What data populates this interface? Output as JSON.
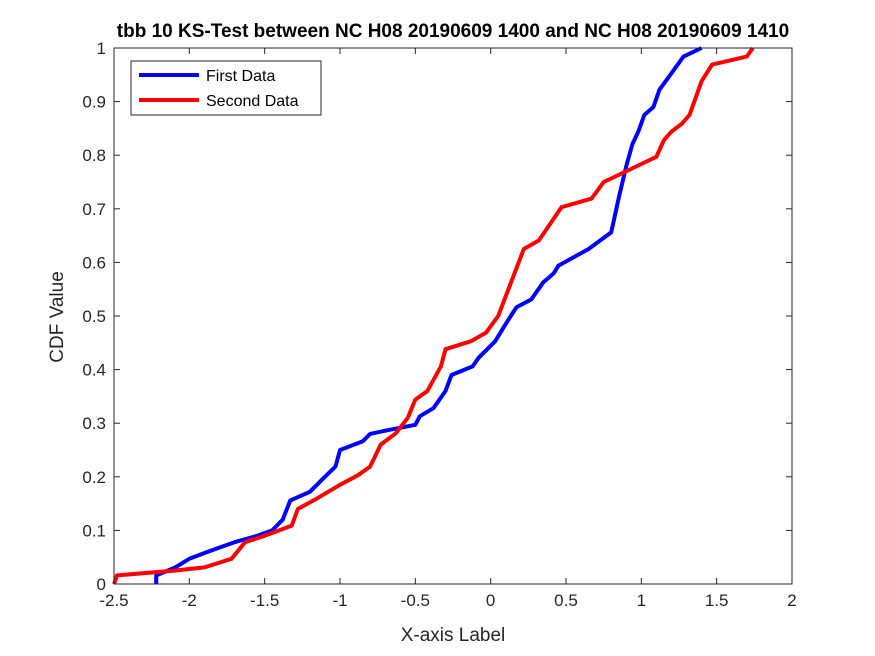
{
  "chart_data": {
    "type": "line",
    "title": "tbb 10 KS-Test between NC H08 20190609 1400 and NC H08 20190609 1410",
    "xlabel": "X-axis Label",
    "ylabel": "CDF Value",
    "xlim": [
      -2.5,
      2
    ],
    "ylim": [
      0,
      1
    ],
    "xticks": [
      -2.5,
      -2,
      -1.5,
      -1,
      -0.5,
      0,
      0.5,
      1,
      1.5,
      2
    ],
    "yticks": [
      0,
      0.1,
      0.2,
      0.3,
      0.4,
      0.5,
      0.6,
      0.7,
      0.8,
      0.9,
      1
    ],
    "xtick_labels": [
      "-2.5",
      "-2",
      "-1.5",
      "-1",
      "-0.5",
      "0",
      "0.5",
      "1",
      "1.5",
      "2"
    ],
    "ytick_labels": [
      "0",
      "0.1",
      "0.2",
      "0.3",
      "0.4",
      "0.5",
      "0.6",
      "0.7",
      "0.8",
      "0.9",
      "1"
    ],
    "grid": false,
    "legend_position": "top-left",
    "series": [
      {
        "name": "First Data",
        "color": "#0000ff",
        "points": [
          [
            -2.22,
            0.0
          ],
          [
            -2.22,
            0.016
          ],
          [
            -2.1,
            0.03
          ],
          [
            -2.0,
            0.047
          ],
          [
            -1.85,
            0.063
          ],
          [
            -1.7,
            0.078
          ],
          [
            -1.55,
            0.09
          ],
          [
            -1.45,
            0.1
          ],
          [
            -1.38,
            0.12
          ],
          [
            -1.33,
            0.156
          ],
          [
            -1.2,
            0.172
          ],
          [
            -1.1,
            0.2
          ],
          [
            -1.03,
            0.219
          ],
          [
            -1.0,
            0.25
          ],
          [
            -0.85,
            0.266
          ],
          [
            -0.8,
            0.28
          ],
          [
            -0.7,
            0.286
          ],
          [
            -0.5,
            0.297
          ],
          [
            -0.47,
            0.313
          ],
          [
            -0.38,
            0.328
          ],
          [
            -0.3,
            0.36
          ],
          [
            -0.26,
            0.39
          ],
          [
            -0.12,
            0.406
          ],
          [
            -0.08,
            0.422
          ],
          [
            0.03,
            0.453
          ],
          [
            0.1,
            0.485
          ],
          [
            0.17,
            0.516
          ],
          [
            0.27,
            0.531
          ],
          [
            0.35,
            0.563
          ],
          [
            0.42,
            0.58
          ],
          [
            0.45,
            0.594
          ],
          [
            0.65,
            0.625
          ],
          [
            0.8,
            0.656
          ],
          [
            0.85,
            0.72
          ],
          [
            0.9,
            0.78
          ],
          [
            0.94,
            0.82
          ],
          [
            0.98,
            0.844
          ],
          [
            1.02,
            0.875
          ],
          [
            1.08,
            0.89
          ],
          [
            1.12,
            0.922
          ],
          [
            1.2,
            0.953
          ],
          [
            1.28,
            0.984
          ],
          [
            1.4,
            1.0
          ]
        ]
      },
      {
        "name": "Second Data",
        "color": "#ff0000",
        "points": [
          [
            -2.5,
            0.0
          ],
          [
            -2.48,
            0.016
          ],
          [
            -2.1,
            0.025
          ],
          [
            -1.9,
            0.031
          ],
          [
            -1.72,
            0.047
          ],
          [
            -1.63,
            0.078
          ],
          [
            -1.5,
            0.09
          ],
          [
            -1.32,
            0.109
          ],
          [
            -1.28,
            0.14
          ],
          [
            -1.15,
            0.16
          ],
          [
            -1.0,
            0.185
          ],
          [
            -0.9,
            0.2
          ],
          [
            -0.87,
            0.205
          ],
          [
            -0.8,
            0.219
          ],
          [
            -0.73,
            0.26
          ],
          [
            -0.63,
            0.281
          ],
          [
            -0.55,
            0.31
          ],
          [
            -0.5,
            0.344
          ],
          [
            -0.42,
            0.36
          ],
          [
            -0.33,
            0.406
          ],
          [
            -0.3,
            0.438
          ],
          [
            -0.13,
            0.453
          ],
          [
            -0.03,
            0.469
          ],
          [
            0.05,
            0.5
          ],
          [
            0.22,
            0.625
          ],
          [
            0.32,
            0.641
          ],
          [
            0.47,
            0.703
          ],
          [
            0.67,
            0.719
          ],
          [
            0.75,
            0.75
          ],
          [
            0.87,
            0.766
          ],
          [
            1.1,
            0.797
          ],
          [
            1.15,
            0.828
          ],
          [
            1.2,
            0.844
          ],
          [
            1.27,
            0.859
          ],
          [
            1.32,
            0.875
          ],
          [
            1.4,
            0.938
          ],
          [
            1.47,
            0.969
          ],
          [
            1.7,
            0.984
          ],
          [
            1.74,
            1.0
          ]
        ]
      }
    ]
  }
}
